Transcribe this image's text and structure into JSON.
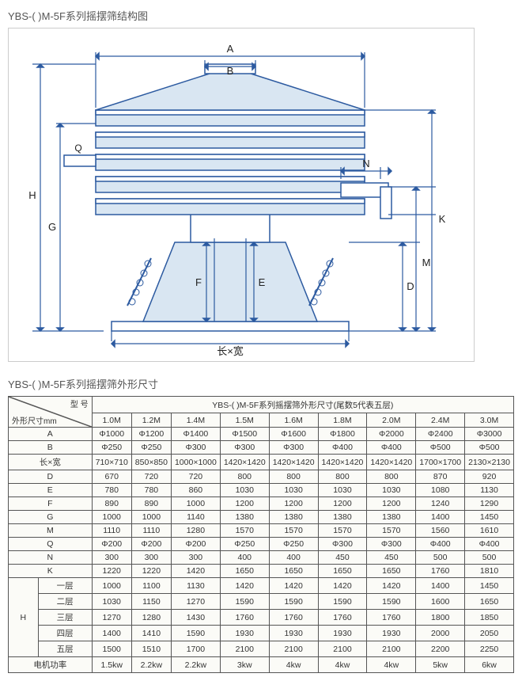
{
  "titles": {
    "structure": "YBS-( )M-5F系列摇摆筛结构图",
    "dims": "YBS-( )M-5F系列摇摆筛外形尺寸"
  },
  "diagram": {
    "labels": {
      "A": "A",
      "B": "B",
      "H": "H",
      "G": "G",
      "F": "F",
      "E": "E",
      "N": "N",
      "K": "K",
      "M": "M",
      "D": "D",
      "LxW": "长×宽",
      "Q": "Q"
    },
    "stroke": "#2c5aa0",
    "fill": "#d9e6f2"
  },
  "table": {
    "header_span": "YBS-(  )M-5F系列摇摆筛外形尺寸(尾数5代表五层)",
    "corner_top": "型 号",
    "corner_bot": "外形尺寸mm",
    "models": [
      "1.0M",
      "1.2M",
      "1.4M",
      "1.5M",
      "1.6M",
      "1.8M",
      "2.0M",
      "2.4M",
      "3.0M"
    ],
    "H_label": "H",
    "rows": [
      {
        "label": "A",
        "vals": [
          "Φ1000",
          "Φ1200",
          "Φ1400",
          "Φ1500",
          "Φ1600",
          "Φ1800",
          "Φ2000",
          "Φ2400",
          "Φ3000"
        ]
      },
      {
        "label": "B",
        "vals": [
          "Φ250",
          "Φ250",
          "Φ300",
          "Φ300",
          "Φ300",
          "Φ400",
          "Φ400",
          "Φ500",
          "Φ500"
        ]
      },
      {
        "label": "长×宽",
        "vals": [
          "710×710",
          "850×850",
          "1000×1000",
          "1420×1420",
          "1420×1420",
          "1420×1420",
          "1420×1420",
          "1700×1700",
          "2130×2130"
        ]
      },
      {
        "label": "D",
        "vals": [
          "670",
          "720",
          "720",
          "800",
          "800",
          "800",
          "800",
          "870",
          "920"
        ]
      },
      {
        "label": "E",
        "vals": [
          "780",
          "780",
          "860",
          "1030",
          "1030",
          "1030",
          "1030",
          "1080",
          "1130"
        ]
      },
      {
        "label": "F",
        "vals": [
          "890",
          "890",
          "1000",
          "1200",
          "1200",
          "1200",
          "1200",
          "1240",
          "1290"
        ]
      },
      {
        "label": "G",
        "vals": [
          "1000",
          "1000",
          "1140",
          "1380",
          "1380",
          "1380",
          "1380",
          "1400",
          "1450"
        ]
      },
      {
        "label": "Q",
        "vals": [
          "Φ200",
          "Φ200",
          "Φ200",
          "Φ250",
          "Φ250",
          "Φ300",
          "Φ300",
          "Φ400",
          "Φ400"
        ]
      },
      {
        "label": "N",
        "vals": [
          "300",
          "300",
          "300",
          "400",
          "400",
          "450",
          "450",
          "500",
          "500"
        ]
      },
      {
        "label": "K",
        "vals": [
          "1220",
          "1220",
          "1420",
          "1650",
          "1650",
          "1650",
          "1650",
          "1760",
          "1810"
        ]
      }
    ],
    "H_rows": [
      {
        "label": "一层",
        "vals": [
          "1000",
          "1100",
          "1130",
          "1420",
          "1420",
          "1420",
          "1420",
          "1400",
          "1450"
        ]
      },
      {
        "label": "二层",
        "vals": [
          "1030",
          "1150",
          "1270",
          "1590",
          "1590",
          "1590",
          "1590",
          "1600",
          "1650"
        ]
      },
      {
        "label": "三层",
        "vals": [
          "1270",
          "1280",
          "1430",
          "1760",
          "1760",
          "1760",
          "1760",
          "1800",
          "1850"
        ]
      },
      {
        "label": "四层",
        "vals": [
          "1400",
          "1410",
          "1590",
          "1930",
          "1930",
          "1930",
          "1930",
          "2000",
          "2050"
        ]
      },
      {
        "label": "五层",
        "vals": [
          "1500",
          "1510",
          "1700",
          "2100",
          "2100",
          "2100",
          "2100",
          "2200",
          "2250"
        ]
      }
    ],
    "power": {
      "label": "电机功率",
      "vals": [
        "1.5kw",
        "2.2kw",
        "2.2kw",
        "3kw",
        "4kw",
        "4kw",
        "4kw",
        "5kw",
        "6kw"
      ]
    },
    "m_row": {
      "label": "M",
      "vals": [
        "1110",
        "1110",
        "1280",
        "1570",
        "1570",
        "1570",
        "1570",
        "1560",
        "1610"
      ]
    }
  }
}
